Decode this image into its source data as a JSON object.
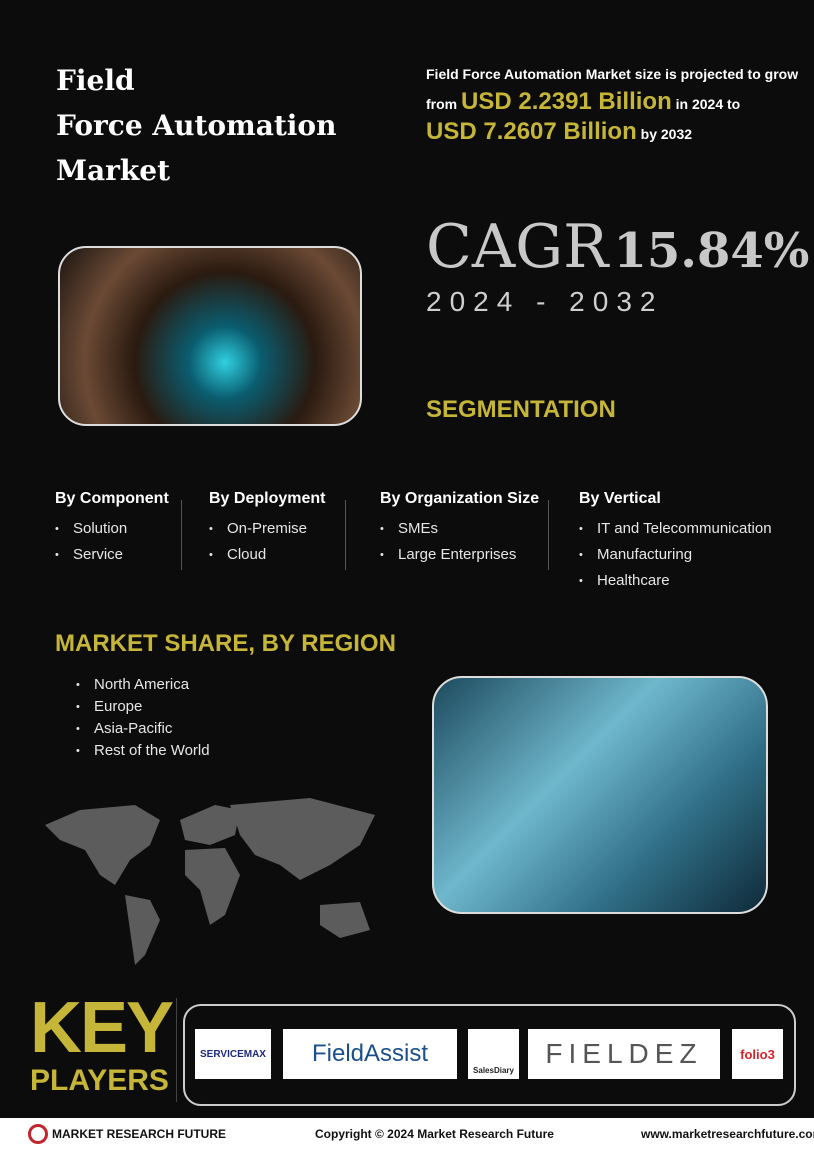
{
  "title": {
    "line1": "Field",
    "line2": "Force Automation",
    "line3": "Market"
  },
  "intro": {
    "text1": "Field Force Automation Market size is projected to grow",
    "from": "from",
    "value1": "USD 2.2391 Billion",
    "text2": "in 2024 to",
    "value2": "USD 7.2607 Billion",
    "text3": "by 2032"
  },
  "cagr": {
    "label": "CAGR",
    "value": "15.84%",
    "years": "2024 - 2032"
  },
  "segmentation": {
    "heading": "SEGMENTATION",
    "columns": [
      {
        "title": "By Component",
        "items": [
          "Solution",
          "Service"
        ]
      },
      {
        "title": "By Deployment",
        "items": [
          "On-Premise",
          "Cloud"
        ]
      },
      {
        "title": "By Organization Size",
        "items": [
          "SMEs",
          "Large Enterprises"
        ]
      },
      {
        "title": "By Vertical",
        "items": [
          "IT and Telecommunication",
          "Manufacturing",
          "Healthcare"
        ]
      }
    ]
  },
  "region": {
    "heading": "MARKET SHARE, BY REGION",
    "items": [
      "North America",
      "Europe",
      "Asia-Pacific",
      "Rest of the World"
    ]
  },
  "key_players": {
    "line1": "KEY",
    "line2": "PLAYERS",
    "logos": [
      "SERVICEMAX",
      "FieldAssist",
      "SalesDiary",
      "FIELDEZ",
      "folio3"
    ]
  },
  "footer": {
    "brand": "MARKET RESEARCH FUTURE",
    "copyright": "Copyright © 2024 Market Research Future",
    "url": "www.marketresearchfuture.com"
  },
  "colors": {
    "accent": "#c5b538",
    "background": "#0d0c0c"
  }
}
